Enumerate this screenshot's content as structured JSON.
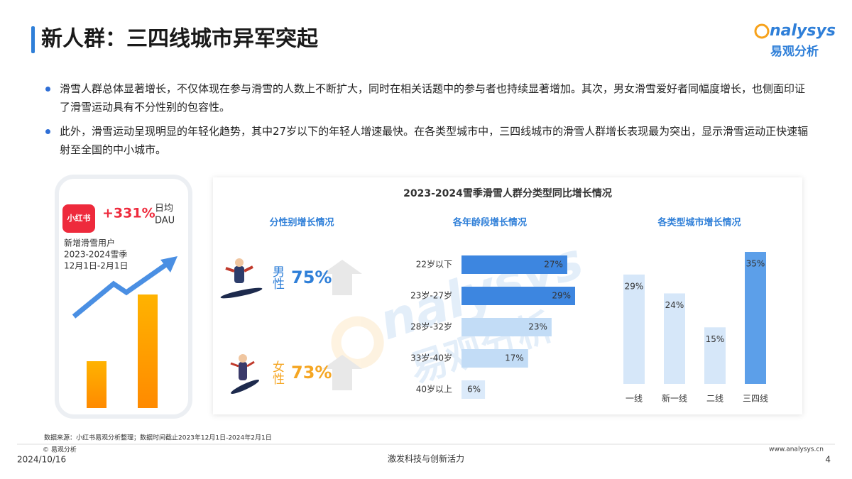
{
  "header": {
    "title": "新人群：三四线城市异军突起",
    "logo": {
      "brand": "nalysys",
      "cn": "易观分析"
    }
  },
  "bullets": [
    "滑雪人群总体显著增长，不仅体现在参与滑雪的人数上不断扩大，同时在相关话题中的参与者也持续显著增加。其次，男女滑雪爱好者同幅度增长，也侧面印证了滑雪运动具有不分性别的包容性。",
    "此外，滑雪运动呈现明显的年轻化趋势，其中27岁以下的年轻人增速最快。在各类型城市中，三四线城市的滑雪人群增长表现最为突出，显示滑雪运动正快速辐射至全国的中小城市。"
  ],
  "phone": {
    "app": "小红书",
    "growth": "+331%",
    "metric": [
      "日均",
      "DAU"
    ],
    "desc": [
      "新增滑雪用户",
      "2023-2024雪季",
      "12月1日-2月1日"
    ]
  },
  "panel": {
    "title": "2023-2024雪季滑雪人群分类型同比增长情况",
    "gender": {
      "title": "分性别增长情况",
      "items": [
        {
          "label": "男性",
          "value": "75%",
          "color": "#2f7fd8"
        },
        {
          "label": "女性",
          "value": "73%",
          "color": "#f5a623"
        }
      ]
    }
  },
  "watermark": {
    "brand": "nalysys",
    "cn": "易观分析"
  },
  "chart_data": [
    {
      "type": "bar",
      "orientation": "horizontal",
      "title": "各年龄段增长情况",
      "categories": [
        "22岁以下",
        "23岁-27岁",
        "28岁-32岁",
        "33岁-40岁",
        "40岁以上"
      ],
      "values": [
        27,
        29,
        23,
        17,
        6
      ],
      "value_labels": [
        "27%",
        "29%",
        "23%",
        "17%",
        "6%"
      ],
      "colors": [
        "#3d86e0",
        "#3d86e0",
        "#c2dcf6",
        "#c2dcf6",
        "#dbeafa"
      ]
    },
    {
      "type": "bar",
      "orientation": "vertical",
      "title": "各类型城市增长情况",
      "categories": [
        "一线",
        "新一线",
        "二线",
        "三四线"
      ],
      "values": [
        29,
        24,
        15,
        35
      ],
      "value_labels": [
        "29%",
        "24%",
        "15%",
        "35%"
      ],
      "colors": [
        "#d6e7f9",
        "#d6e7f9",
        "#d6e7f9",
        "#5c9fe9"
      ]
    }
  ],
  "footer": {
    "source": "数据来源：小红书易观分析整理；数据时间截止2023年12月1日-2024年2月1日",
    "copyright": "© 易观分析",
    "date": "2024/10/16",
    "slogan": "激发科技与创新活力",
    "url": "www.analysys.cn",
    "page": "4"
  }
}
